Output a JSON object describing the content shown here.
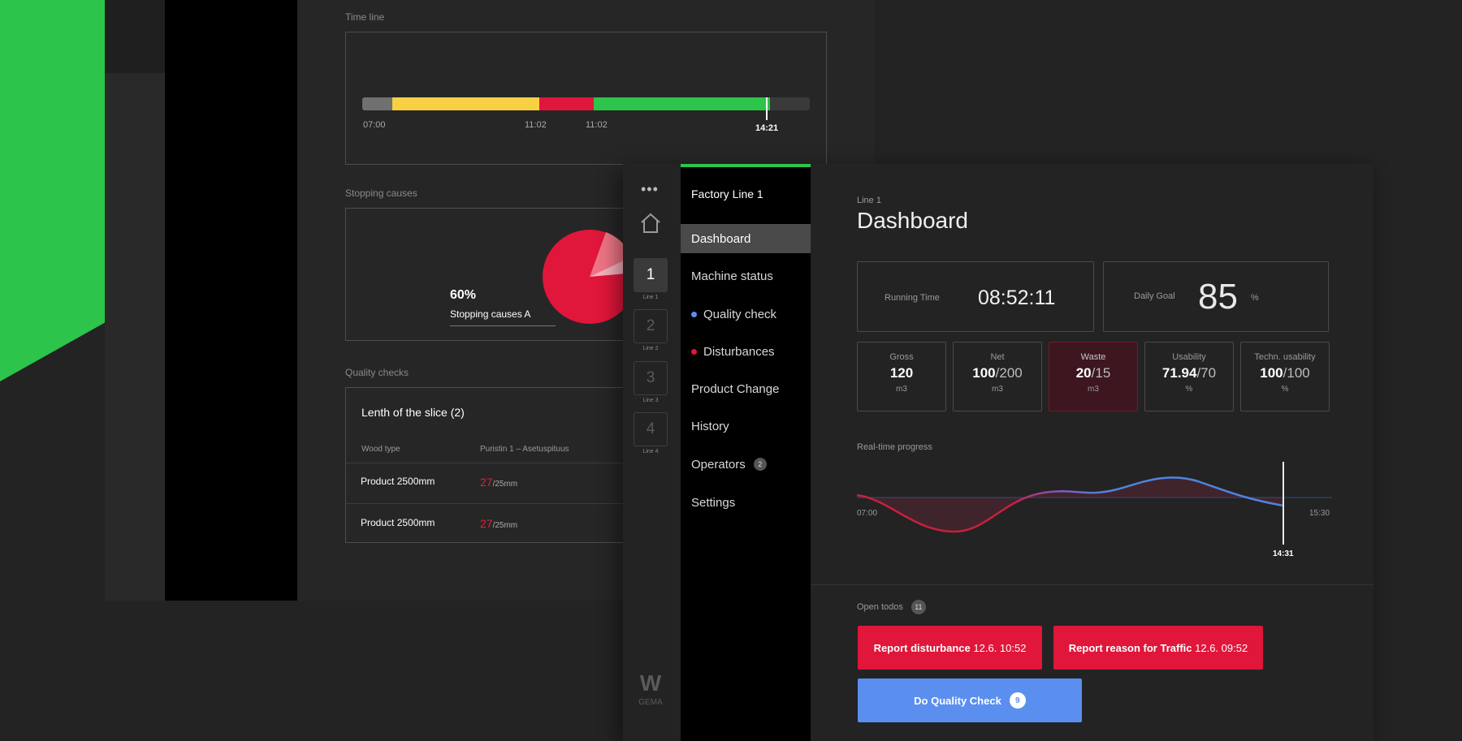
{
  "colors": {
    "accent_green": "#2cc44a",
    "alert_red": "#e0163a",
    "info_blue": "#5a8ff0",
    "segment_yellow": "#f7d044",
    "segment_grey": "#707070"
  },
  "back": {
    "timeline_label": "Time line",
    "timeline_ticks": [
      "07:00",
      "11:02",
      "11:02",
      "14:21"
    ],
    "stopping_label": "Stopping causes",
    "pie_pct": "60%",
    "pie_caption": "Stopping causes A",
    "quality_label": "Quality checks",
    "qc_title": "Lenth of the slice (2)",
    "qc_col1": "Wood type",
    "qc_col2": "Puristin 1 – Asetuspituus",
    "rows": [
      {
        "product": "Product 2500mm",
        "value": "27",
        "target": "/25mm"
      },
      {
        "product": "Product 2500mm",
        "value": "27",
        "target": "/25mm"
      }
    ]
  },
  "rail": {
    "menu_icon": "more-dots-icon",
    "home_icon": "home-icon",
    "lines": [
      {
        "num": "1",
        "cap": "Line 1"
      },
      {
        "num": "2",
        "cap": "Line 2"
      },
      {
        "num": "3",
        "cap": "Line 3"
      },
      {
        "num": "4",
        "cap": "Line 4"
      }
    ],
    "logo_text": "GEMA",
    "logo_mark": "W"
  },
  "nav": {
    "title": "Factory Line 1",
    "items": [
      "Dashboard",
      "Machine status",
      "Quality check",
      "Disturbances",
      "Product Change",
      "History",
      "Operators",
      "Settings"
    ],
    "operators_badge": "2"
  },
  "main": {
    "kicker": "Line 1",
    "title": "Dashboard",
    "running_label": "Running Time",
    "running_value": "08:52:11",
    "goal_label": "Daily Goal",
    "goal_value": "85",
    "goal_unit": "%",
    "kpis": [
      {
        "label": "Gross",
        "val": "120",
        "target": "",
        "unit": "m3"
      },
      {
        "label": "Net",
        "val": "100",
        "target": "/200",
        "unit": "m3"
      },
      {
        "label": "Waste",
        "val": "20",
        "target": "/15",
        "unit": "m3"
      },
      {
        "label": "Usability",
        "val": "71.94",
        "target": "/70",
        "unit": "%"
      },
      {
        "label": "Techn. usability",
        "val": "100",
        "target": "/100",
        "unit": "%"
      }
    ],
    "progress_label": "Real-time progress",
    "progress_start": "07:00",
    "progress_end": "15:30",
    "progress_now": "14:31",
    "todos_label": "Open todos",
    "todos_count": "11",
    "btn1_bold": "Report disturbance",
    "btn1_time": "12.6. 10:52",
    "btn2_bold": "Report reason for Traffic",
    "btn2_time": "12.6. 09:52",
    "btn3_label": "Do Quality Check",
    "btn3_count": "9"
  }
}
